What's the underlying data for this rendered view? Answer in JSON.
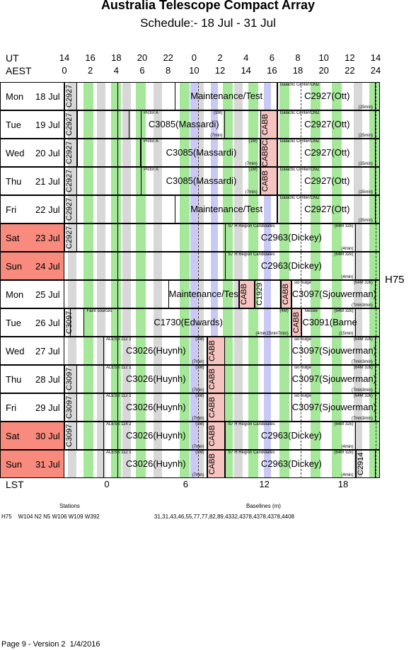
{
  "header": {
    "title": "Australia Telescope Compact Array",
    "subtitle": "Schedule:- 18 Jul - 31 Jul"
  },
  "axes": {
    "ut_label": "UT",
    "aest_label": "AEST",
    "lst_label": "LST",
    "ut_ticks": [
      "14",
      "16",
      "18",
      "20",
      "22",
      "0",
      "2",
      "4",
      "6",
      "8",
      "10",
      "12",
      "14"
    ],
    "aest_ticks": [
      "0",
      "2",
      "4",
      "6",
      "8",
      "10",
      "12",
      "14",
      "16",
      "18",
      "20",
      "22",
      "24"
    ],
    "lst_ticks": [
      "0",
      "6",
      "12",
      "18"
    ]
  },
  "days": [
    {
      "day": "Mon",
      "date": "18 Jul",
      "weekend": false
    },
    {
      "day": "Tue",
      "date": "19 Jul",
      "weekend": false
    },
    {
      "day": "Wed",
      "date": "20 Jul",
      "weekend": false
    },
    {
      "day": "Thu",
      "date": "21 Jul",
      "weekend": false
    },
    {
      "day": "Fri",
      "date": "22 Jul",
      "weekend": false
    },
    {
      "day": "Sat",
      "date": "23 Jul",
      "weekend": true
    },
    {
      "day": "Sun",
      "date": "24 Jul",
      "weekend": true
    },
    {
      "day": "Mon",
      "date": "25 Jul",
      "weekend": false
    },
    {
      "day": "Tue",
      "date": "26 Jul",
      "weekend": false
    },
    {
      "day": "Wed",
      "date": "27 Jul",
      "weekend": false
    },
    {
      "day": "Thu",
      "date": "28 Jul",
      "weekend": false
    },
    {
      "day": "Fri",
      "date": "29 Jul",
      "weekend": false
    },
    {
      "day": "Sat",
      "date": "30 Jul",
      "weekend": true
    },
    {
      "day": "Sun",
      "date": "31 Jul",
      "weekend": true
    }
  ],
  "config": "H75",
  "rows": [
    {
      "blocks": [
        {
          "a": 0,
          "b": 1,
          "label": "C2927",
          "vertical": true
        },
        {
          "a": 8.5,
          "b": 16.4,
          "label": "Maintenance/Test"
        },
        {
          "a": 16.4,
          "b": 24,
          "label": "C2927(Ott)",
          "note": "Galactic Center/CMZ",
          "extra": "(15min)"
        }
      ]
    },
    {
      "blocks": [
        {
          "a": 0,
          "b": 1,
          "label": "C2927",
          "vertical": true
        },
        {
          "a": 1,
          "b": 5,
          "label": ""
        },
        {
          "a": 5.9,
          "b": 12.4,
          "label": "C3085(Massardi)",
          "note": "Pictor A",
          "extra": "(7min)",
          "tag": "(1M)"
        },
        {
          "a": 15.1,
          "b": 16.4,
          "label": "CABB",
          "vertical": true,
          "pink": true
        },
        {
          "a": 16.4,
          "b": 24,
          "label": "C2927(Ott)",
          "note": "Galactic Center/CMZ",
          "extra": "(15min)"
        }
      ]
    },
    {
      "blocks": [
        {
          "a": 0,
          "b": 1,
          "label": "C2927",
          "vertical": true
        },
        {
          "a": 1,
          "b": 5.9,
          "label": ""
        },
        {
          "a": 5.9,
          "b": 15.1,
          "label": "C3085(Massardi)",
          "note": "Pictor A",
          "extra": "(7min)",
          "tag": "(1M)"
        },
        {
          "a": 15.1,
          "b": 16.4,
          "label": "CABBCABB",
          "vertical": true,
          "pink": true
        },
        {
          "a": 16.4,
          "b": 24,
          "label": "C2927(Ott)",
          "note": "Galactic Center/CMZ",
          "extra": "(15min)"
        }
      ]
    },
    {
      "blocks": [
        {
          "a": 0,
          "b": 1,
          "label": "C2927",
          "vertical": true
        },
        {
          "a": 5.9,
          "b": 15.1,
          "label": "C3085(Massardi)",
          "note": "Pictor A",
          "extra": "(7min)",
          "tag": "(1M)"
        },
        {
          "a": 15.1,
          "b": 16.4,
          "label": "CABB",
          "vertical": true,
          "pink": true
        },
        {
          "a": 16.4,
          "b": 24,
          "label": "C2927(Ott)",
          "note": "Galactic Center/CMZ",
          "extra": "(15min)"
        }
      ]
    },
    {
      "blocks": [
        {
          "a": 0,
          "b": 1,
          "label": "C2927",
          "vertical": true
        },
        {
          "a": 8.5,
          "b": 16.4,
          "label": "Maintenance/Test"
        },
        {
          "a": 16.4,
          "b": 24,
          "label": "C2927(Ott)",
          "note": "Galactic Center/CMZ",
          "extra": "(15min)"
        }
      ]
    },
    {
      "blocks": [
        {
          "a": 0,
          "b": 1,
          "label": "C2927",
          "vertical": true
        },
        {
          "a": 12.4,
          "b": 22.5,
          "label": "C2963(Dickey)",
          "note": "S7 H Region Candidates",
          "tag": "(64M 32k)",
          "extra": "(4min)"
        }
      ]
    },
    {
      "blocks": [
        {
          "a": 12.4,
          "b": 22.5,
          "label": "C2963(Dickey)",
          "note": "S7 H Region Candidates",
          "tag": "(64M 32k)",
          "extra": "(4min)"
        }
      ]
    },
    {
      "blocks": [
        {
          "a": 8,
          "b": 13.5,
          "label": "Maintenance/Test"
        },
        {
          "a": 13.5,
          "b": 14.7,
          "label": "CABB",
          "vertical": true,
          "pink": true
        },
        {
          "a": 14.7,
          "b": 16.7,
          "label": "C1929",
          "vertical": true
        },
        {
          "a": 16.7,
          "b": 17.5,
          "label": "CABB",
          "vertical": true,
          "pink": true
        },
        {
          "a": 17.5,
          "b": 24,
          "label": "C3097(Sjouwerman)",
          "note": "sio bulge",
          "tag": "(64M 32k)",
          "extra": "(7min3min)"
        }
      ]
    },
    {
      "blocks": [
        {
          "a": 0,
          "b": 0.5,
          "label": "C3097",
          "vertical": true
        },
        {
          "a": 1.5,
          "b": 17.5,
          "label": "C1730(Edwards)",
          "note": "Faint sources",
          "tag": "(4M)",
          "extra": "(4min15min7min)"
        },
        {
          "a": 17.5,
          "b": 18.3,
          "label": "CABB",
          "vertical": true,
          "pink": true
        },
        {
          "a": 18.3,
          "b": 22.5,
          "label": "C3091(Barnes)",
          "note": "Nessie",
          "tag": "(64M 32k)",
          "extra": "(15min)"
        }
      ]
    },
    {
      "blocks": [
        {
          "a": 3,
          "b": 11,
          "label": "C3026(Huynh)",
          "note": "ALESS 112 1",
          "tag": "(1M)",
          "extra": "(7min)"
        },
        {
          "a": 11,
          "b": 12.4,
          "label": "CABB",
          "vertical": true,
          "pink": true
        },
        {
          "a": 17.5,
          "b": 24,
          "label": "C3097(Sjouwerman)",
          "note": "sio bulge",
          "tag": "(64M 32k)",
          "extra": "(7min3min)"
        }
      ]
    },
    {
      "blocks": [
        {
          "a": 0,
          "b": 1,
          "label": "C3097",
          "vertical": true
        },
        {
          "a": 3,
          "b": 11,
          "label": "C3026(Huynh)",
          "note": "ALESS 112 1",
          "tag": "(1M)",
          "extra": "(7min)"
        },
        {
          "a": 11,
          "b": 12.4,
          "label": "CABB",
          "vertical": true,
          "pink": true
        },
        {
          "a": 17.5,
          "b": 24,
          "label": "C3097(Sjouwerman)",
          "note": "sio bulge",
          "tag": "(64M 32k)",
          "extra": "(7min3min)"
        }
      ]
    },
    {
      "blocks": [
        {
          "a": 0,
          "b": 1,
          "label": "C3097",
          "vertical": true
        },
        {
          "a": 3,
          "b": 11,
          "label": "C3026(Huynh)",
          "note": "ALESS 112 1",
          "tag": "(1M)",
          "extra": "(7min)"
        },
        {
          "a": 11,
          "b": 12.4,
          "label": "CABB",
          "vertical": true,
          "pink": true
        },
        {
          "a": 17.5,
          "b": 24,
          "label": "C3097(Sjouwerman)",
          "note": "sio bulge",
          "tag": "(64M 32k)",
          "extra": "(7min3min)"
        }
      ]
    },
    {
      "blocks": [
        {
          "a": 0,
          "b": 1,
          "label": "C3097",
          "vertical": true
        },
        {
          "a": 3,
          "b": 11,
          "label": "C3026(Huynh)",
          "note": "ALESS 114 2",
          "tag": "(1M)",
          "extra": "(7min)"
        },
        {
          "a": 11,
          "b": 12.4,
          "label": "CABB",
          "vertical": true,
          "pink": true
        },
        {
          "a": 12.4,
          "b": 22.5,
          "label": "C2963(Dickey)",
          "note": "S7 H Region Candidates",
          "tag": "(64M 32k)",
          "extra": "(4min)"
        }
      ]
    },
    {
      "blocks": [
        {
          "a": 3,
          "b": 11,
          "label": "C3026(Huynh)",
          "note": "ALESS 112 1",
          "tag": "(1M)",
          "extra": "(7min)"
        },
        {
          "a": 11,
          "b": 12.4,
          "label": "CABB",
          "vertical": true,
          "pink": true
        },
        {
          "a": 12.4,
          "b": 22.5,
          "label": "C2963(Dickey)",
          "note": "S7 H Region Candidates",
          "tag": "(64M 32k)",
          "extra": "(4min)"
        },
        {
          "a": 22.5,
          "b": 24,
          "label": "C2914",
          "vertical": true
        }
      ]
    }
  ],
  "footer": {
    "stations_label": "Stations",
    "baselines_label": "Baselines (m)",
    "stations_value": "H75    W104 N2 N5 W106 W109 W392",
    "baselines_value": "31,31,43,46,55,77,77,82,89,4332,4378,4378,4378,4408",
    "page_info": "Page 9 - Version 2  1/4/2016"
  },
  "colors": {
    "green": "#a6e89a",
    "grey": "#d8d8d8",
    "lavender": "#c9c9f5",
    "pink": "#f6c4c0",
    "weekend": "#f88b7e"
  }
}
